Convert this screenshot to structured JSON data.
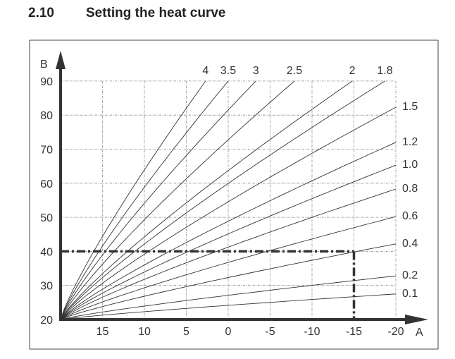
{
  "section": {
    "number": "2.10",
    "title": "Setting the heat curve"
  },
  "chart_data": {
    "type": "line",
    "title": "Setting the heat curve",
    "xlabel": "A",
    "ylabel": "B",
    "xlim": [
      20,
      -20
    ],
    "ylim": [
      20,
      90
    ],
    "x_ticks": [
      15,
      10,
      5,
      0,
      -5,
      -10,
      -15,
      -20
    ],
    "x_tick_labels": [
      "15",
      "10",
      "5",
      "0",
      "-5",
      "-10",
      "-15",
      "-20"
    ],
    "y_ticks": [
      20,
      30,
      40,
      50,
      60,
      70,
      80,
      90
    ],
    "y_tick_labels": [
      "20",
      "30",
      "40",
      "50",
      "60",
      "70",
      "80",
      "90"
    ],
    "grid": true,
    "series": [
      {
        "name": "4",
        "start": [
          20,
          20
        ],
        "end": [
          2.7,
          90
        ]
      },
      {
        "name": "3.5",
        "start": [
          20,
          20
        ],
        "end": [
          0,
          90
        ]
      },
      {
        "name": "3",
        "start": [
          20,
          20
        ],
        "end": [
          -3.3,
          90
        ]
      },
      {
        "name": "2.5",
        "start": [
          20,
          20
        ],
        "end": [
          -7.9,
          90
        ]
      },
      {
        "name": "2",
        "start": [
          20,
          20
        ],
        "end": [
          -14.8,
          90
        ]
      },
      {
        "name": "1.8",
        "start": [
          20,
          20
        ],
        "end": [
          -18.7,
          90
        ]
      },
      {
        "name": "1.5",
        "start": [
          20,
          20
        ],
        "end": [
          -20,
          82.3
        ]
      },
      {
        "name": "1.2",
        "start": [
          20,
          20
        ],
        "end": [
          -20,
          72
        ]
      },
      {
        "name": "1.0",
        "start": [
          20,
          20
        ],
        "end": [
          -20,
          65.3
        ]
      },
      {
        "name": "0.8",
        "start": [
          20,
          20
        ],
        "end": [
          -20,
          58.3
        ]
      },
      {
        "name": "0.6",
        "start": [
          20,
          20
        ],
        "end": [
          -20,
          50.2
        ]
      },
      {
        "name": "0.4",
        "start": [
          20,
          20
        ],
        "end": [
          -20,
          42.2
        ]
      },
      {
        "name": "0.2",
        "start": [
          20,
          20
        ],
        "end": [
          -20,
          32.8
        ]
      },
      {
        "name": "0.1",
        "start": [
          20,
          20
        ],
        "end": [
          -20,
          27.5
        ]
      }
    ],
    "example": {
      "x": -15,
      "y": 40,
      "style": "dash-dot"
    }
  }
}
